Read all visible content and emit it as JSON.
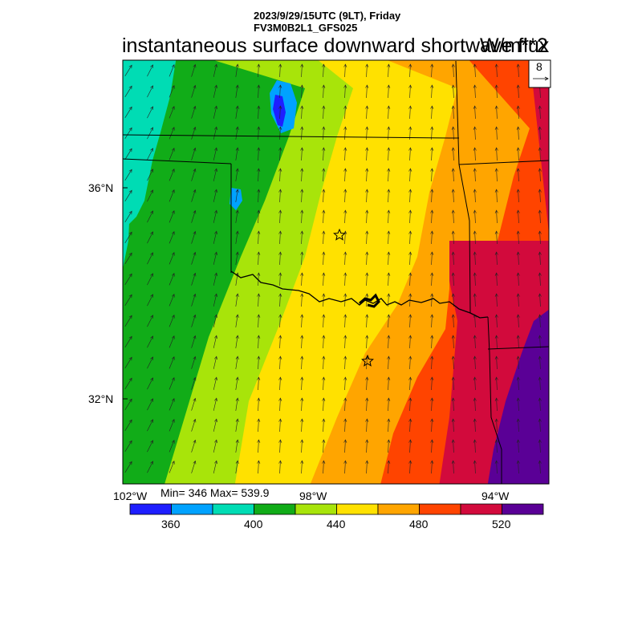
{
  "header": {
    "line1": "2023/9/29/15UTC (9LT), Friday",
    "line2": "FV3M0B2L1_GFS025",
    "title": "instantaneous surface downward shortwave flux",
    "units": "W/m**2"
  },
  "map": {
    "lat_labels": [
      "36°N",
      "32°N"
    ],
    "lon_labels": [
      "102°W",
      "98°W",
      "94°W"
    ],
    "min_max": "Min= 346 Max= 539.9",
    "vector_reference": "8",
    "colors": {
      "fill_bands": [
        "#1e1eff",
        "#00a2ff",
        "#00dcb4",
        "#11ac18",
        "#a8e40a",
        "#ffe100",
        "#ffa500",
        "#ff4400",
        "#d20a3c",
        "#5a0096"
      ]
    }
  },
  "colorbar": {
    "colors": [
      "#1e1eff",
      "#00a2ff",
      "#00dcb4",
      "#11ac18",
      "#a8e40a",
      "#ffe100",
      "#ffa500",
      "#ff4400",
      "#d20a3c",
      "#5a0096"
    ],
    "tick_labels": [
      "360",
      "400",
      "440",
      "480",
      "520"
    ]
  }
}
